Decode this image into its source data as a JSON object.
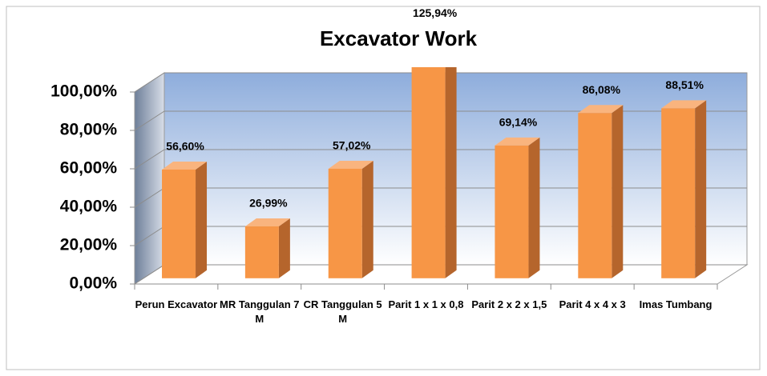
{
  "chart_data": {
    "type": "bar3d",
    "title": "Excavator Work",
    "categories": [
      "Perun Excavator",
      "MR Tanggulan 7 M",
      "CR Tanggulan 5 M",
      "Parit 1 x 1 x 0,8",
      "Parit 2 x 2 x 1,5",
      "Parit 4 x 4 x 3",
      "Imas Tumbang"
    ],
    "values": [
      56.6,
      26.99,
      57.02,
      125.94,
      69.14,
      86.08,
      88.51
    ],
    "value_labels": [
      "56,60%",
      "26,99%",
      "57,02%",
      "125,94%",
      "69,14%",
      "86,08%",
      "88,51%"
    ],
    "color": "#f79646",
    "ylim": [
      0,
      100
    ],
    "yticks": [
      {
        "value": 0,
        "label": "0,00%"
      },
      {
        "value": 20,
        "label": "20,00%"
      },
      {
        "value": 40,
        "label": "40,00%"
      },
      {
        "value": 60,
        "label": "60,00%"
      },
      {
        "value": 80,
        "label": "80,00%"
      },
      {
        "value": 100,
        "label": "100,00%"
      }
    ],
    "grid": true
  }
}
